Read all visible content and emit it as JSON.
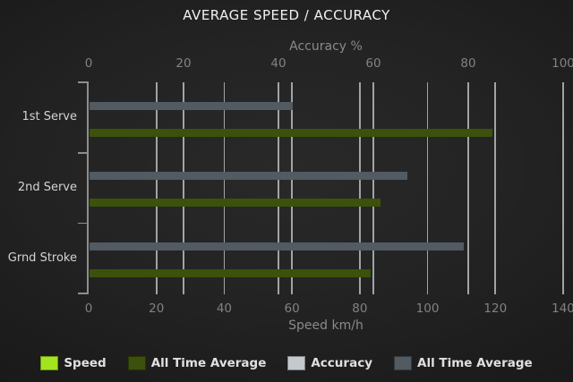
{
  "title": "AVERAGE SPEED / ACCURACY",
  "chart_data": {
    "type": "bar",
    "orientation": "horizontal",
    "title": "AVERAGE SPEED / ACCURACY",
    "categories": [
      "1st Serve",
      "2nd Serve",
      "Grnd Stroke"
    ],
    "top_axis": {
      "label": "Accuracy %",
      "min": 0,
      "max": 100,
      "ticks": [
        0,
        20,
        40,
        60,
        80,
        100
      ]
    },
    "bottom_axis": {
      "label": "Speed km/h",
      "min": 0,
      "max": 140,
      "ticks": [
        0,
        20,
        40,
        60,
        80,
        100,
        120,
        140
      ]
    },
    "grid": true,
    "legend_position": "bottom",
    "series": [
      {
        "name": "Speed",
        "axis": "bottom",
        "color": "#a3e41f",
        "values": [
          0,
          0,
          0
        ]
      },
      {
        "name": "All Time Average",
        "axis": "bottom",
        "color": "#3c510c",
        "values": [
          119,
          86,
          83
        ]
      },
      {
        "name": "Accuracy",
        "axis": "top",
        "color": "#c3c9cc",
        "values": [
          0,
          0,
          0
        ]
      },
      {
        "name": "All Time Average",
        "axis": "top",
        "color": "#525a62",
        "values": [
          43,
          67,
          79
        ]
      }
    ]
  },
  "colors": {
    "background_center": "#292929",
    "background_edge": "#111111",
    "title_text": "#f1f1f1",
    "axis_text": "#8a8a8a",
    "tick_text": "#828282",
    "category_text": "#d4d4d4",
    "gridline": "#bcc1c1",
    "spine": "#8d8d8d",
    "legend_text": "#e0e0e0"
  }
}
